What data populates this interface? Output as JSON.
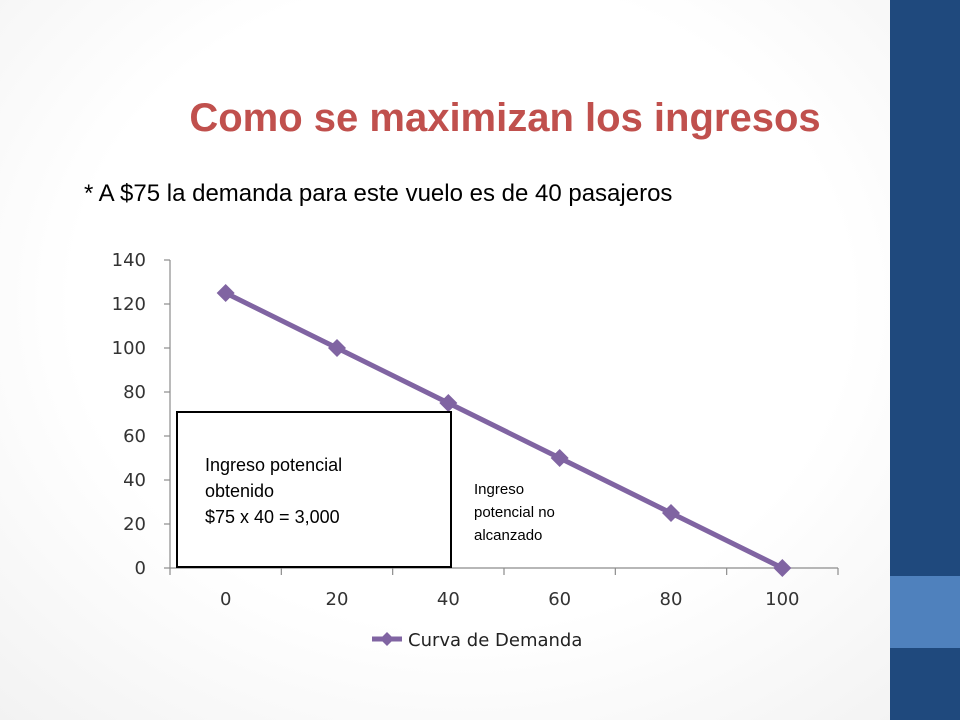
{
  "slide": {
    "title": "Como se maximizan los ingresos",
    "subtitle": "* A $75 la demanda para este vuelo es de 40 pasajeros",
    "colors": {
      "title": "#c0504d",
      "sidebar": "#1f497d",
      "sidebar_accent": "#4f81bd",
      "series": "#8064a2"
    }
  },
  "annotations": {
    "box_lines": [
      "Ingreso potencial",
      "obtenido",
      "$75 x 40 = 3,000"
    ],
    "note_lines": [
      "Ingreso",
      "potencial no",
      "alcanzado"
    ]
  },
  "chart_data": {
    "type": "line",
    "categories": [
      "0",
      "20",
      "40",
      "60",
      "80",
      "100"
    ],
    "series": [
      {
        "name": "Curva de Demanda",
        "values": [
          125,
          100,
          75,
          50,
          25,
          0
        ],
        "color": "#8064a2",
        "marker": "diamond"
      }
    ],
    "ylim": [
      0,
      140
    ],
    "yticks": [
      0,
      20,
      40,
      60,
      80,
      100,
      120,
      140
    ],
    "legend_position": "bottom",
    "grid": false
  }
}
